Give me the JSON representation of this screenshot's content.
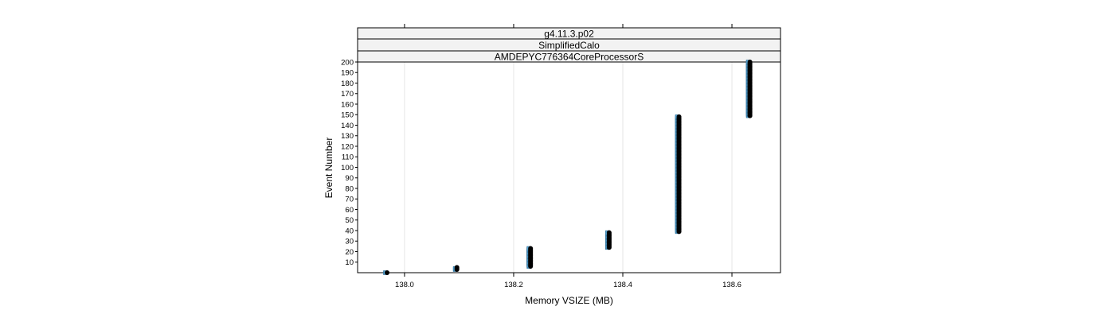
{
  "chart_data": {
    "type": "scatter",
    "strips": [
      "g4.11.3.p02",
      "SimplifiedCalo",
      "AMDEPYC776364CoreProcessorS"
    ],
    "xlabel": "Memory VSIZE (MB)",
    "ylabel": "Event Number",
    "xlim": [
      137.914,
      138.689
    ],
    "ylim": [
      0,
      200
    ],
    "x_ticks": [
      138.0,
      138.2,
      138.4,
      138.6
    ],
    "x_tick_labels": [
      "138.0",
      "138.2",
      "138.4",
      "138.6"
    ],
    "y_ticks": [
      10,
      20,
      30,
      40,
      50,
      60,
      70,
      80,
      90,
      100,
      110,
      120,
      130,
      140,
      150,
      160,
      170,
      180,
      190,
      200
    ],
    "y_tick_labels": [
      "10",
      "20",
      "30",
      "40",
      "50",
      "60",
      "70",
      "80",
      "90",
      "100",
      "110",
      "120",
      "130",
      "140",
      "150",
      "160",
      "170",
      "180",
      "190",
      "200"
    ],
    "grid": "vertical",
    "series": [
      {
        "marker": "blue-square",
        "color": "#5aa9d6",
        "clusters": [
          {
            "x": 137.965,
            "y_from": 0,
            "y_to": 0
          },
          {
            "x": 138.093,
            "y_from": 3,
            "y_to": 4
          },
          {
            "x": 138.228,
            "y_from": 6,
            "y_to": 23
          },
          {
            "x": 138.372,
            "y_from": 24,
            "y_to": 38
          },
          {
            "x": 138.5,
            "y_from": 39,
            "y_to": 148
          },
          {
            "x": 138.63,
            "y_from": 149,
            "y_to": 200
          }
        ]
      },
      {
        "marker": "black-circle",
        "color": "#000000",
        "clusters": [
          {
            "x": 137.968,
            "y_from": 0,
            "y_to": 0
          },
          {
            "x": 138.096,
            "y_from": 3,
            "y_to": 5
          },
          {
            "x": 138.231,
            "y_from": 6,
            "y_to": 23
          },
          {
            "x": 138.375,
            "y_from": 24,
            "y_to": 38
          },
          {
            "x": 138.503,
            "y_from": 39,
            "y_to": 148
          },
          {
            "x": 138.633,
            "y_from": 149,
            "y_to": 200
          }
        ]
      }
    ]
  }
}
